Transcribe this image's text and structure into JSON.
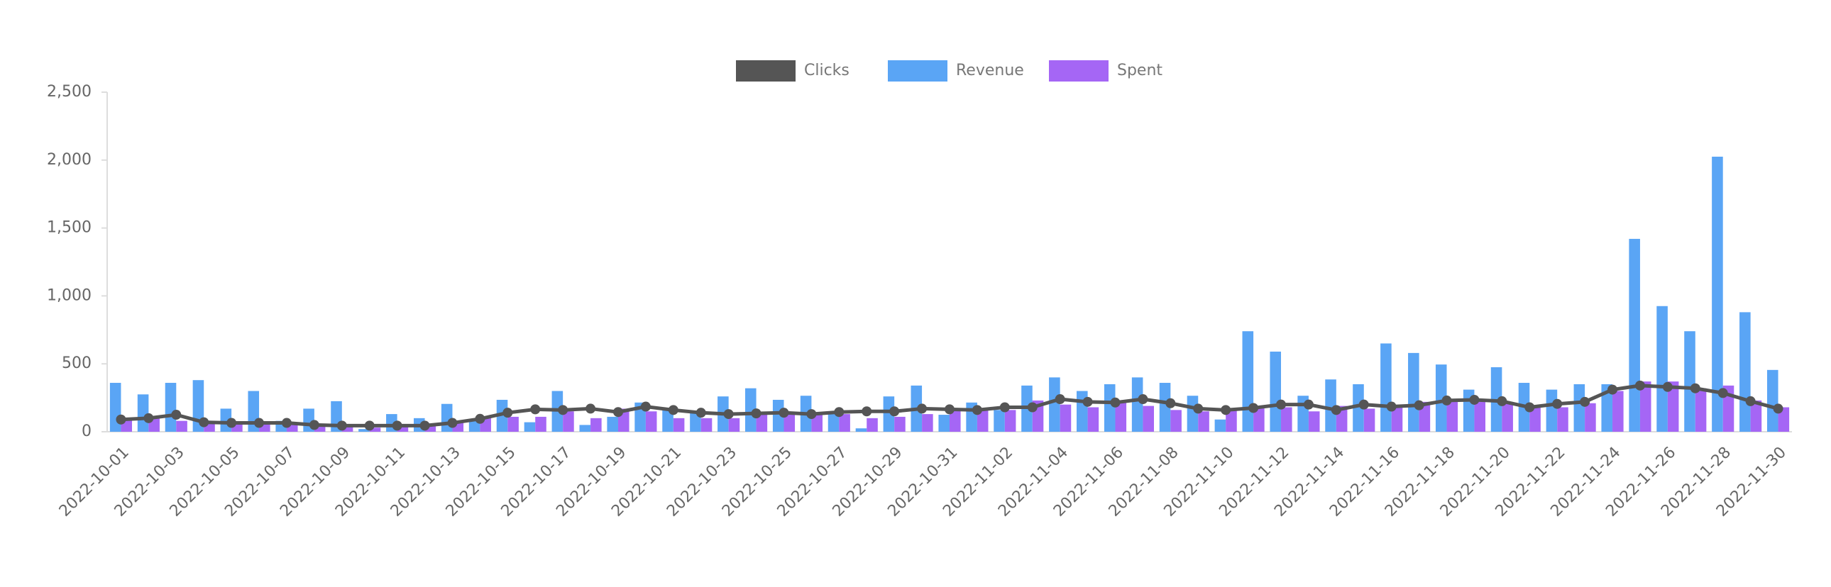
{
  "chart_data": {
    "type": "bar",
    "categories": [
      "2022-10-01",
      null,
      "2022-10-03",
      null,
      "2022-10-05",
      null,
      "2022-10-07",
      null,
      "2022-10-09",
      null,
      "2022-10-11",
      null,
      "2022-10-13",
      null,
      "2022-10-15",
      null,
      "2022-10-17",
      null,
      "2022-10-19",
      null,
      "2022-10-21",
      null,
      "2022-10-23",
      null,
      "2022-10-25",
      null,
      "2022-10-27",
      null,
      "2022-10-29",
      null,
      "2022-10-31",
      null,
      "2022-11-02",
      null,
      "2022-11-04",
      null,
      "2022-11-06",
      null,
      "2022-11-08",
      null,
      "2022-11-10",
      null,
      "2022-11-12",
      null,
      "2022-11-14",
      null,
      "2022-11-16",
      null,
      "2022-11-18",
      null,
      "2022-11-20",
      null,
      "2022-11-22",
      null,
      "2022-11-24",
      null,
      "2022-11-26",
      null,
      "2022-11-28",
      null,
      "2022-11-30"
    ],
    "series": [
      {
        "name": "Clicks",
        "type": "line",
        "color": "#555555",
        "values": [
          90,
          100,
          125,
          70,
          65,
          65,
          65,
          50,
          45,
          45,
          45,
          45,
          65,
          95,
          140,
          165,
          160,
          170,
          145,
          185,
          160,
          140,
          130,
          135,
          140,
          130,
          145,
          150,
          150,
          170,
          165,
          160,
          180,
          180,
          240,
          220,
          215,
          240,
          210,
          170,
          160,
          175,
          200,
          200,
          160,
          200,
          185,
          195,
          230,
          235,
          225,
          180,
          205,
          220,
          310,
          340,
          330,
          320,
          285,
          225,
          170
        ]
      },
      {
        "name": "Revenue",
        "type": "bar",
        "color": "#5aa5f5",
        "values": [
          360,
          275,
          360,
          380,
          170,
          300,
          80,
          170,
          225,
          20,
          130,
          100,
          205,
          90,
          235,
          70,
          300,
          50,
          110,
          215,
          170,
          150,
          260,
          320,
          235,
          265,
          140,
          25,
          260,
          340,
          125,
          215,
          160,
          340,
          400,
          300,
          350,
          400,
          360,
          265,
          90,
          740,
          590,
          265,
          385,
          350,
          650,
          580,
          495,
          310,
          475,
          360,
          310,
          350,
          350,
          1420,
          925,
          740,
          2025,
          880,
          455
        ]
      },
      {
        "name": "Spent",
        "type": "bar",
        "color": "#a566f5",
        "values": [
          90,
          100,
          80,
          60,
          70,
          60,
          60,
          40,
          40,
          30,
          40,
          50,
          80,
          100,
          110,
          110,
          150,
          100,
          170,
          150,
          100,
          100,
          100,
          130,
          130,
          130,
          130,
          100,
          110,
          130,
          160,
          160,
          160,
          230,
          200,
          180,
          220,
          190,
          160,
          150,
          170,
          190,
          180,
          150,
          190,
          170,
          190,
          220,
          220,
          230,
          210,
          180,
          180,
          210,
          300,
          370,
          370,
          320,
          340,
          230,
          180
        ]
      }
    ],
    "ylim": [
      0,
      2500
    ],
    "yticks": [
      0,
      {
        "value": 500,
        "label": "500"
      },
      {
        "value": 1000,
        "label": "1,000"
      },
      {
        "value": 1500,
        "label": "1,500"
      },
      {
        "value": 2000,
        "label": "2,000"
      },
      {
        "value": 2500,
        "label": "2,500"
      }
    ],
    "legend": "top"
  }
}
